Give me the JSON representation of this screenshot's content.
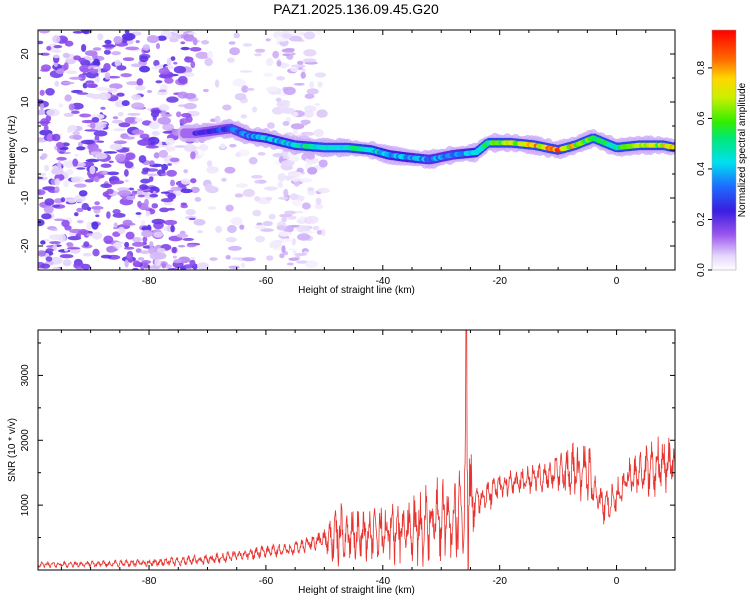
{
  "title": "PAZ1.2025.136.09.45.G20",
  "chart_data": [
    {
      "type": "heatmap",
      "title": "PAZ1.2025.136.09.45.G20",
      "xlabel": "Height of straight line (km)",
      "ylabel": "Frequency (Hz)",
      "xlim": [
        -99,
        10
      ],
      "ylim": [
        -25,
        25
      ],
      "xticks": [
        -80,
        -60,
        -40,
        -20,
        0
      ],
      "yticks": [
        20,
        10,
        0,
        -10,
        -20
      ],
      "colorbar": {
        "label": "Normalized spectral amplitude",
        "range": [
          0.0,
          0.95
        ],
        "ticks": [
          0.0,
          0.2,
          0.4,
          0.6,
          0.8
        ]
      },
      "ridge": {
        "x": [
          -72,
          -66,
          -63,
          -60,
          -55,
          -50,
          -46,
          -42,
          -39,
          -36,
          -32,
          -28,
          -24,
          -22,
          -18,
          -14,
          -10,
          -7,
          -4,
          -2,
          0,
          4,
          8,
          10
        ],
        "freq": [
          3.5,
          4.5,
          3.0,
          2.5,
          1.0,
          0.5,
          0.5,
          0.0,
          -1.0,
          -1.5,
          -2.0,
          -1.0,
          -0.5,
          1.5,
          1.5,
          1.0,
          0.0,
          1.0,
          2.5,
          1.5,
          0.5,
          1.0,
          1.0,
          0.5
        ],
        "amplitude": [
          0.25,
          0.35,
          0.4,
          0.45,
          0.5,
          0.55,
          0.55,
          0.5,
          0.45,
          0.45,
          0.4,
          0.4,
          0.45,
          0.6,
          0.8,
          0.85,
          0.9,
          0.75,
          0.6,
          0.55,
          0.6,
          0.7,
          0.8,
          0.75
        ]
      }
    },
    {
      "type": "line",
      "xlabel": "Height of straight line (km)",
      "ylabel": "SNR (10 * v/v)",
      "xlim": [
        -99,
        10
      ],
      "ylim": [
        0,
        3700
      ],
      "xticks": [
        -80,
        -60,
        -40,
        -20,
        0
      ],
      "yticks": [
        1000,
        2000,
        3000
      ],
      "color": "#e8332e",
      "envelope": {
        "x": [
          -99,
          -90,
          -80,
          -70,
          -65,
          -60,
          -55,
          -50,
          -48,
          -45,
          -42,
          -38,
          -35,
          -32,
          -30,
          -28,
          -26,
          -25.5,
          -25,
          -24,
          -22,
          -20,
          -18,
          -15,
          -12,
          -10,
          -8,
          -6,
          -5,
          -4,
          -3,
          -2,
          0,
          2,
          4,
          6,
          8,
          10
        ],
        "baseline": [
          80,
          90,
          110,
          160,
          220,
          280,
          330,
          480,
          520,
          550,
          560,
          600,
          650,
          700,
          750,
          800,
          900,
          1200,
          1100,
          1050,
          1150,
          1300,
          1350,
          1400,
          1450,
          1500,
          1500,
          1500,
          1450,
          1300,
          1100,
          1000,
          1100,
          1400,
          1500,
          1550,
          1700,
          1650
        ],
        "amplitude": [
          40,
          50,
          60,
          80,
          90,
          100,
          120,
          150,
          500,
          350,
          420,
          500,
          550,
          600,
          650,
          700,
          800,
          2400,
          700,
          300,
          250,
          200,
          200,
          220,
          250,
          300,
          400,
          500,
          700,
          300,
          250,
          300,
          300,
          300,
          350,
          400,
          500,
          350
        ]
      }
    }
  ]
}
